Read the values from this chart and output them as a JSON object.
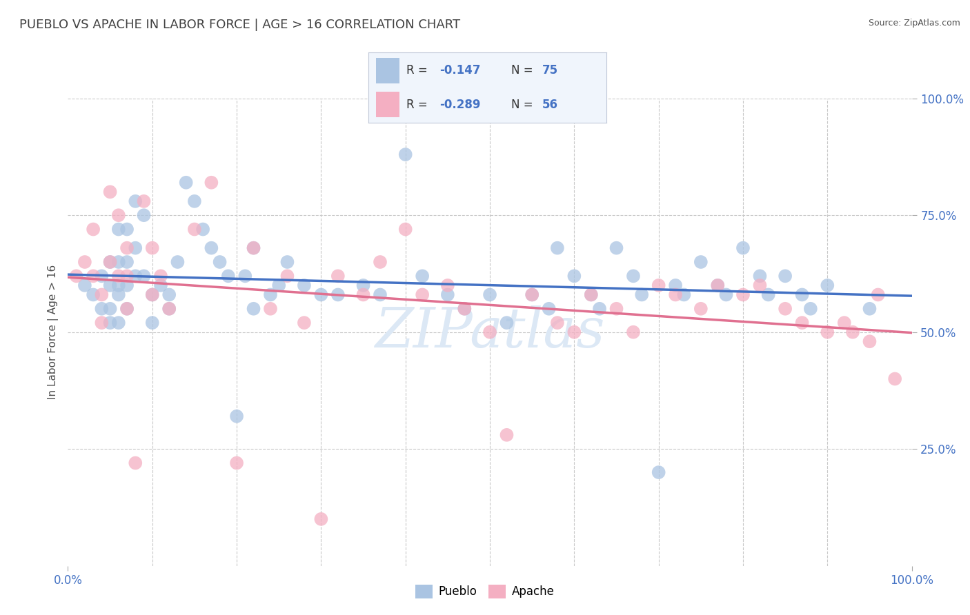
{
  "title": "PUEBLO VS APACHE IN LABOR FORCE | AGE > 16 CORRELATION CHART",
  "source_text": "Source: ZipAtlas.com",
  "ylabel": "In Labor Force | Age > 16",
  "xlim": [
    0.0,
    1.0
  ],
  "ylim": [
    0.0,
    1.0
  ],
  "x_tick_labels": [
    "0.0%",
    "100.0%"
  ],
  "y_tick_positions": [
    0.25,
    0.5,
    0.75,
    1.0
  ],
  "y_tick_labels": [
    "25.0%",
    "50.0%",
    "75.0%",
    "100.0%"
  ],
  "legend1_label": "Pueblo",
  "legend2_label": "Apache",
  "R_pueblo": -0.147,
  "N_pueblo": 75,
  "R_apache": -0.289,
  "N_apache": 56,
  "pueblo_color": "#aac4e2",
  "apache_color": "#f4afc2",
  "pueblo_line_color": "#4472c4",
  "apache_line_color": "#e07090",
  "background_color": "#ffffff",
  "grid_color": "#c8c8c8",
  "title_color": "#404040",
  "axis_label_color": "#505050",
  "tick_color": "#4472c4",
  "watermark_color": "#dce8f5",
  "legend_box_color": "#e8f0fa",
  "legend_text_color": "#333333",
  "legend_value_color": "#4472c4",
  "pueblo_scatter_x": [
    0.02,
    0.03,
    0.04,
    0.04,
    0.05,
    0.05,
    0.05,
    0.05,
    0.06,
    0.06,
    0.06,
    0.06,
    0.06,
    0.07,
    0.07,
    0.07,
    0.07,
    0.08,
    0.08,
    0.08,
    0.09,
    0.09,
    0.1,
    0.1,
    0.11,
    0.12,
    0.12,
    0.13,
    0.14,
    0.15,
    0.16,
    0.17,
    0.18,
    0.19,
    0.2,
    0.21,
    0.22,
    0.22,
    0.24,
    0.25,
    0.26,
    0.28,
    0.3,
    0.32,
    0.35,
    0.37,
    0.4,
    0.42,
    0.45,
    0.47,
    0.5,
    0.52,
    0.55,
    0.57,
    0.58,
    0.6,
    0.62,
    0.63,
    0.65,
    0.67,
    0.68,
    0.7,
    0.72,
    0.73,
    0.75,
    0.77,
    0.78,
    0.8,
    0.82,
    0.83,
    0.85,
    0.87,
    0.88,
    0.9,
    0.95
  ],
  "pueblo_scatter_y": [
    0.6,
    0.58,
    0.55,
    0.62,
    0.65,
    0.6,
    0.55,
    0.52,
    0.72,
    0.65,
    0.6,
    0.58,
    0.52,
    0.72,
    0.65,
    0.6,
    0.55,
    0.78,
    0.68,
    0.62,
    0.75,
    0.62,
    0.58,
    0.52,
    0.6,
    0.58,
    0.55,
    0.65,
    0.82,
    0.78,
    0.72,
    0.68,
    0.65,
    0.62,
    0.32,
    0.62,
    0.68,
    0.55,
    0.58,
    0.6,
    0.65,
    0.6,
    0.58,
    0.58,
    0.6,
    0.58,
    0.88,
    0.62,
    0.58,
    0.55,
    0.58,
    0.52,
    0.58,
    0.55,
    0.68,
    0.62,
    0.58,
    0.55,
    0.68,
    0.62,
    0.58,
    0.2,
    0.6,
    0.58,
    0.65,
    0.6,
    0.58,
    0.68,
    0.62,
    0.58,
    0.62,
    0.58,
    0.55,
    0.6,
    0.55
  ],
  "apache_scatter_x": [
    0.01,
    0.02,
    0.03,
    0.03,
    0.04,
    0.04,
    0.05,
    0.05,
    0.06,
    0.06,
    0.07,
    0.07,
    0.07,
    0.08,
    0.09,
    0.1,
    0.1,
    0.11,
    0.12,
    0.15,
    0.17,
    0.2,
    0.22,
    0.24,
    0.26,
    0.28,
    0.3,
    0.32,
    0.35,
    0.37,
    0.4,
    0.42,
    0.45,
    0.47,
    0.5,
    0.52,
    0.55,
    0.58,
    0.6,
    0.62,
    0.65,
    0.67,
    0.7,
    0.72,
    0.75,
    0.77,
    0.8,
    0.82,
    0.85,
    0.87,
    0.9,
    0.92,
    0.93,
    0.95,
    0.96,
    0.98
  ],
  "apache_scatter_y": [
    0.62,
    0.65,
    0.72,
    0.62,
    0.58,
    0.52,
    0.8,
    0.65,
    0.75,
    0.62,
    0.68,
    0.62,
    0.55,
    0.22,
    0.78,
    0.68,
    0.58,
    0.62,
    0.55,
    0.72,
    0.82,
    0.22,
    0.68,
    0.55,
    0.62,
    0.52,
    0.1,
    0.62,
    0.58,
    0.65,
    0.72,
    0.58,
    0.6,
    0.55,
    0.5,
    0.28,
    0.58,
    0.52,
    0.5,
    0.58,
    0.55,
    0.5,
    0.6,
    0.58,
    0.55,
    0.6,
    0.58,
    0.6,
    0.55,
    0.52,
    0.5,
    0.52,
    0.5,
    0.48,
    0.58,
    0.4
  ]
}
